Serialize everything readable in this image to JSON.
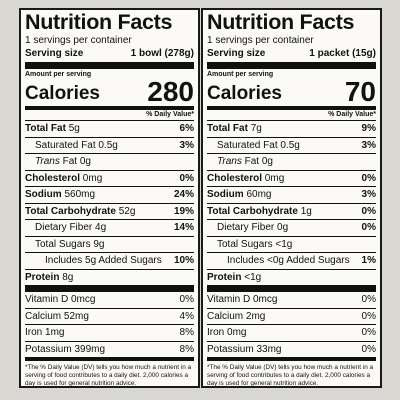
{
  "labels": [
    {
      "title": "Nutrition Facts",
      "servings_per_container": "1 servings per container",
      "serving_size_label": "Serving size",
      "serving_size_value": "1 bowl (278g)",
      "amount_per_serving": "Amount per serving",
      "calories_label": "Calories",
      "calories_value": "280",
      "dv_header": "% Daily Value*",
      "total_fat": {
        "name": "Total Fat",
        "amount": "5g",
        "dv": "6%"
      },
      "saturated_fat": {
        "name": "Saturated Fat",
        "amount": "0.5g",
        "dv": "3%"
      },
      "trans_fat": {
        "name": "Trans",
        "rest": "Fat",
        "amount": "0g"
      },
      "cholesterol": {
        "name": "Cholesterol",
        "amount": "0mg",
        "dv": "0%"
      },
      "sodium": {
        "name": "Sodium",
        "amount": "560mg",
        "dv": "24%"
      },
      "total_carbohydrate": {
        "name": "Total Carbohydrate",
        "amount": "52g",
        "dv": "19%"
      },
      "dietary_fiber": {
        "name": "Dietary Fiber",
        "amount": "4g",
        "dv": "14%"
      },
      "total_sugars": {
        "name": "Total Sugars",
        "amount": "9g"
      },
      "added_sugars": {
        "text": "Includes 5g Added Sugars",
        "dv": "10%"
      },
      "protein": {
        "name": "Protein",
        "amount": "8g"
      },
      "vitamin_d": {
        "name": "Vitamin D",
        "amount": "0mcg",
        "dv": "0%"
      },
      "calcium": {
        "name": "Calcium",
        "amount": "52mg",
        "dv": "4%"
      },
      "iron": {
        "name": "Iron",
        "amount": "1mg",
        "dv": "8%"
      },
      "potassium": {
        "name": "Potassium",
        "amount": "399mg",
        "dv": "8%"
      },
      "footnote": "*The % Daily Value (DV) tells you how much a nutrient in a serving of food contributes to a daily diet. 2,000 calories a day is used for general nutrition advice."
    },
    {
      "title": "Nutrition Facts",
      "servings_per_container": "1 servings per container",
      "serving_size_label": "Serving size",
      "serving_size_value": "1 packet (15g)",
      "amount_per_serving": "Amount per serving",
      "calories_label": "Calories",
      "calories_value": "70",
      "dv_header": "% Daily Value*",
      "total_fat": {
        "name": "Total Fat",
        "amount": "7g",
        "dv": "9%"
      },
      "saturated_fat": {
        "name": "Saturated Fat",
        "amount": "0.5g",
        "dv": "3%"
      },
      "trans_fat": {
        "name": "Trans",
        "rest": "Fat",
        "amount": "0g"
      },
      "cholesterol": {
        "name": "Cholesterol",
        "amount": "0mg",
        "dv": "0%"
      },
      "sodium": {
        "name": "Sodium",
        "amount": "60mg",
        "dv": "3%"
      },
      "total_carbohydrate": {
        "name": "Total Carbohydrate",
        "amount": "1g",
        "dv": "0%"
      },
      "dietary_fiber": {
        "name": "Dietary Fiber",
        "amount": "0g",
        "dv": "0%"
      },
      "total_sugars": {
        "name": "Total Sugars",
        "amount": "<1g"
      },
      "added_sugars": {
        "text": "Includes <0g Added Sugars",
        "dv": "1%"
      },
      "protein": {
        "name": "Protein",
        "amount": "<1g"
      },
      "vitamin_d": {
        "name": "Vitamin D",
        "amount": "0mcg",
        "dv": "0%"
      },
      "calcium": {
        "name": "Calcium",
        "amount": "2mg",
        "dv": "0%"
      },
      "iron": {
        "name": "Iron",
        "amount": "0mg",
        "dv": "0%"
      },
      "potassium": {
        "name": "Potassium",
        "amount": "33mg",
        "dv": "0%"
      },
      "footnote": "*The % Daily Value (DV) tells you how much a nutrient in a serving of food contributes to a daily diet. 2,000 calories a day is used for general nutrition advice."
    }
  ]
}
